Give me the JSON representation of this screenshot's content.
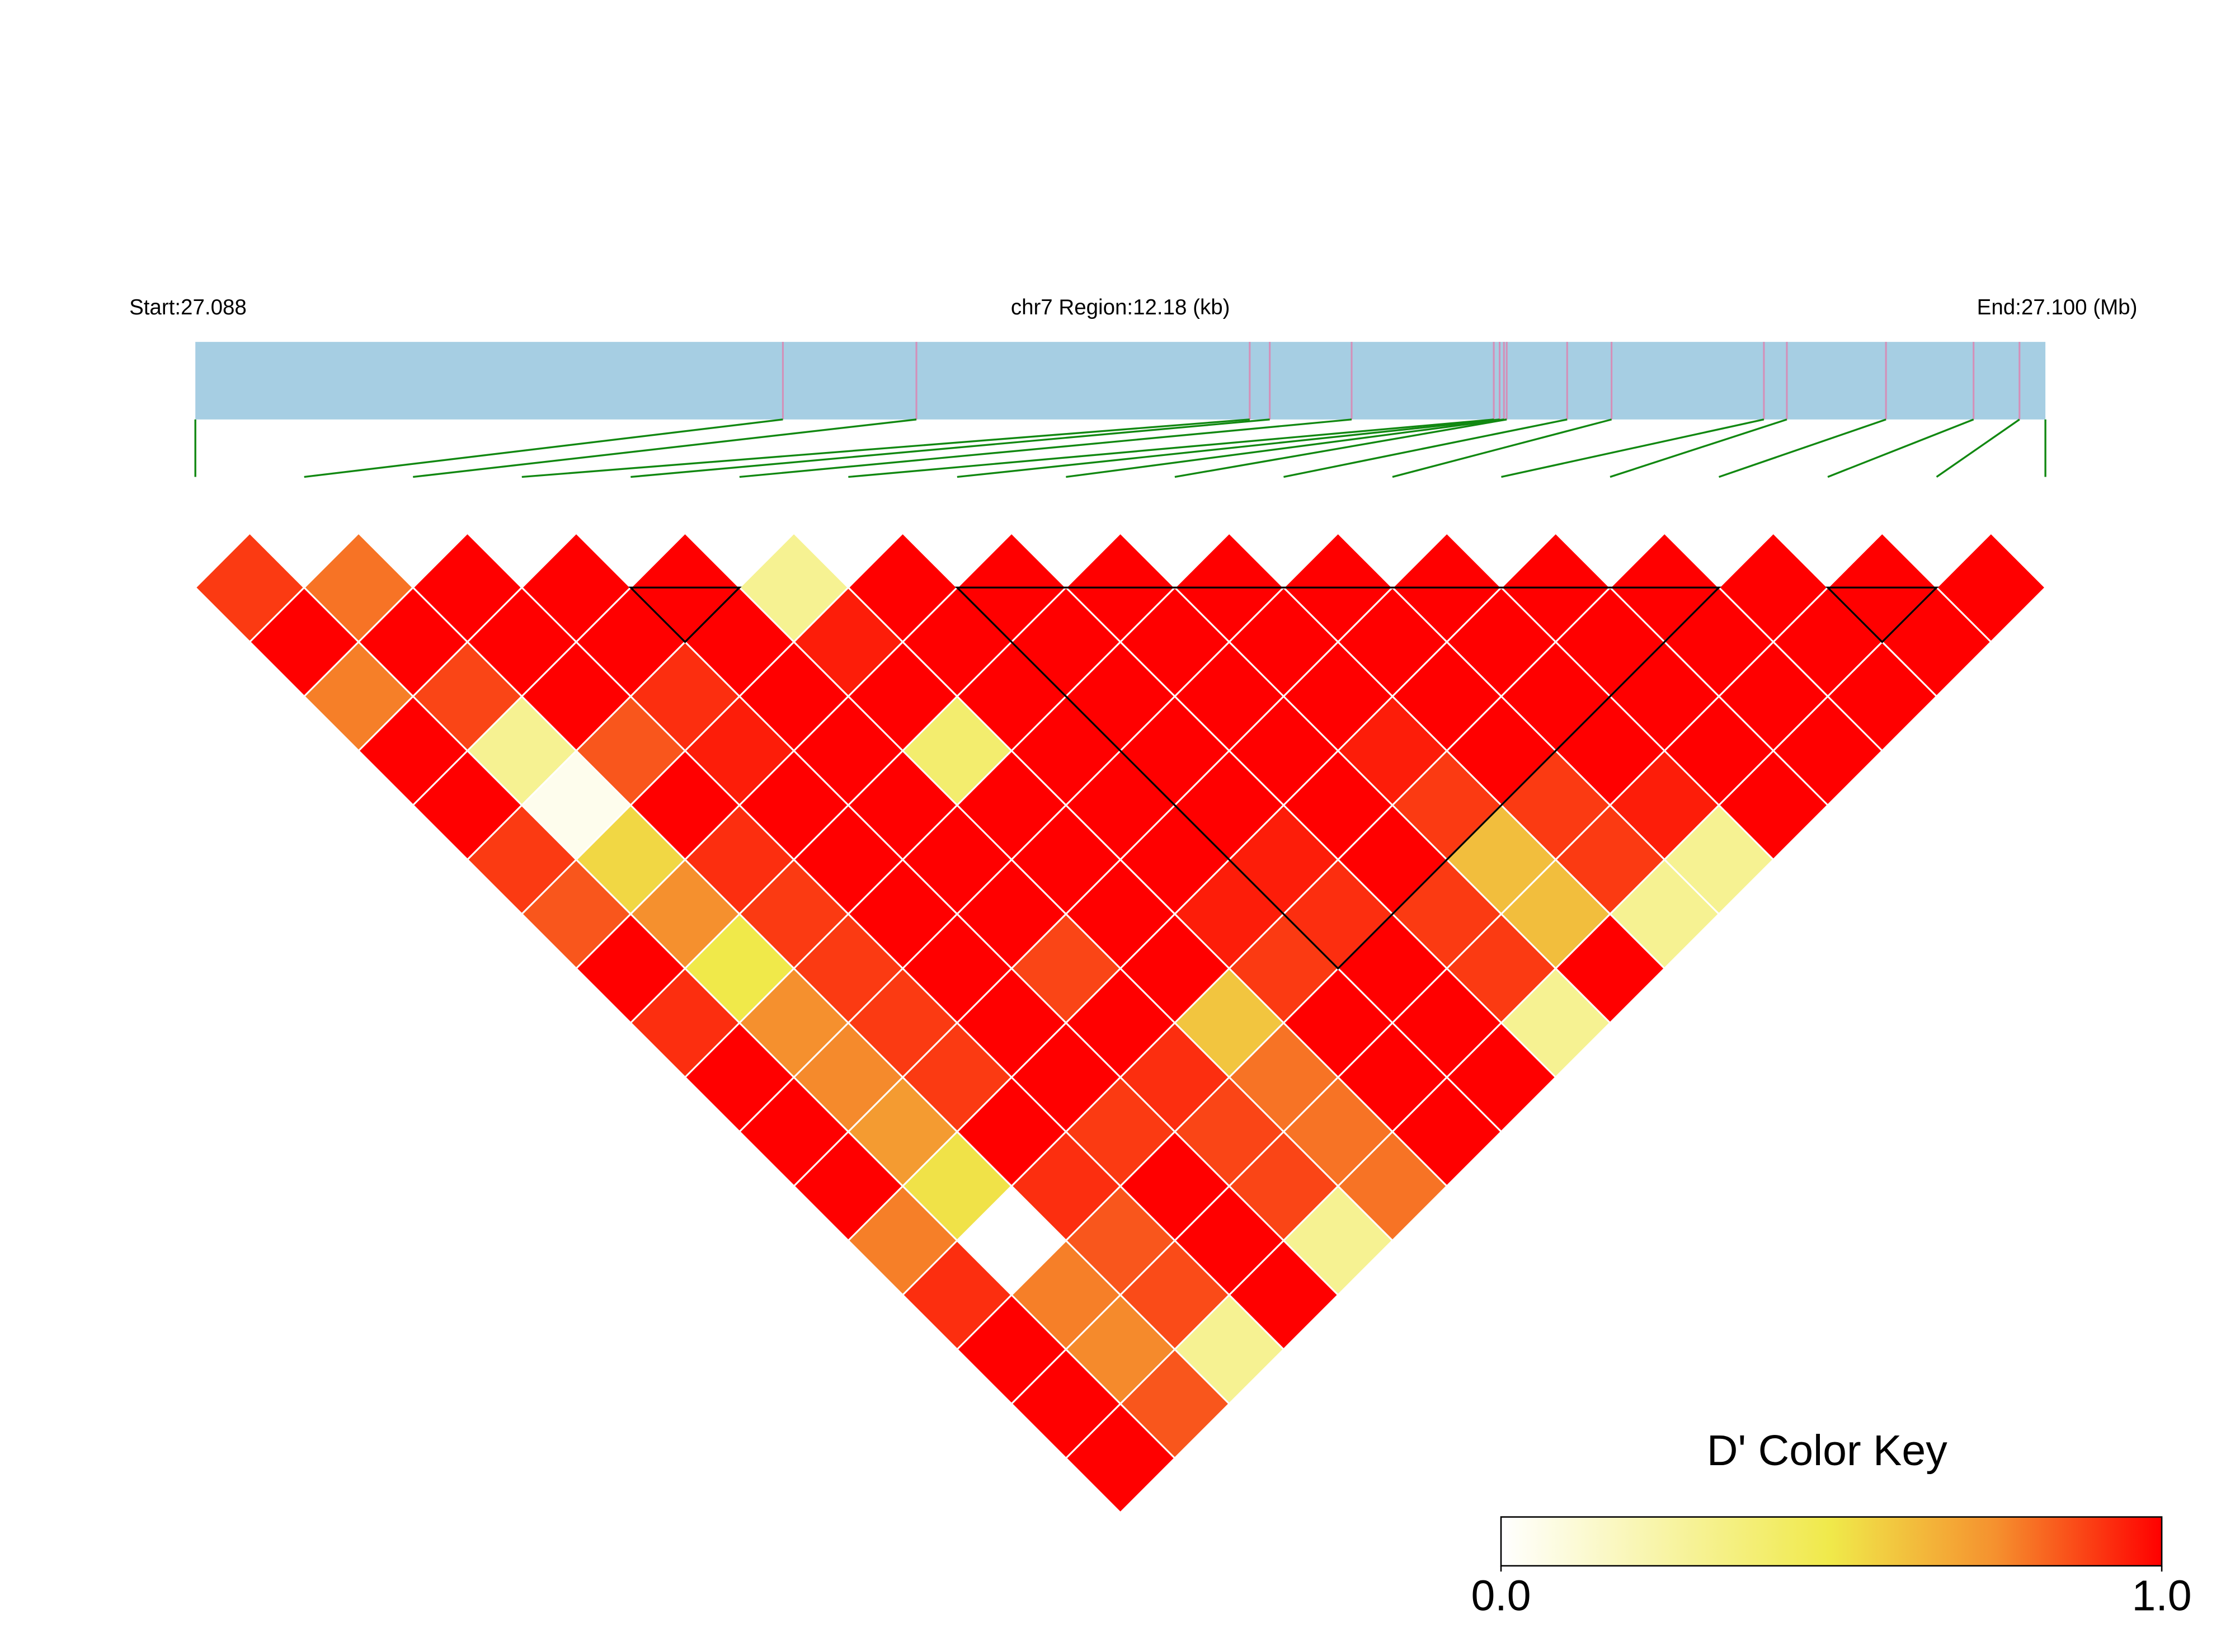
{
  "chart_data": {
    "type": "ld_heatmap",
    "start_label": "Start:27.088",
    "region_label": "chr7 Region:12.18 (kb)",
    "end_label": "End:27.100 (Mb)",
    "xlim": [
      27.088,
      27.1
    ],
    "snp_positions": [
      27.088,
      27.091811,
      27.092677,
      27.094839,
      27.094969,
      27.0955,
      27.096422,
      27.09646,
      27.096488,
      27.096506,
      27.096898,
      27.097186,
      27.098174,
      27.098323,
      27.098966,
      27.099534,
      27.099832,
      27.1
    ],
    "dprime": [
      [
        0.9,
        0.8,
        1,
        1,
        1,
        0.3,
        1,
        1,
        1,
        1,
        1,
        1,
        1,
        1,
        1,
        1,
        1
      ],
      [
        1,
        1,
        1,
        1,
        1,
        0.95,
        1,
        1,
        1,
        1,
        1,
        1,
        1,
        1,
        1,
        1
      ],
      [
        0.78,
        0.88,
        1,
        0.92,
        1,
        1,
        1,
        1,
        1,
        1,
        1,
        1,
        1,
        1,
        1
      ],
      [
        1,
        0.3,
        0.85,
        0.95,
        1,
        0.4,
        1,
        1,
        1,
        0.95,
        1,
        1,
        1,
        1
      ],
      [
        1,
        0.05,
        1,
        1,
        1,
        1,
        1,
        1,
        1,
        0.9,
        0.9,
        0.95,
        1
      ],
      [
        0.9,
        0.55,
        0.92,
        1,
        1,
        1,
        1,
        0.95,
        1,
        0.62,
        0.9,
        0.3
      ],
      [
        0.85,
        0.75,
        0.9,
        1,
        1,
        1,
        0.95,
        0.92,
        0.9,
        0.62,
        0.3
      ],
      [
        1,
        0.5,
        0.9,
        1,
        0.88,
        1,
        0.9,
        1,
        0.9,
        1
      ],
      [
        0.92,
        0.75,
        0.9,
        1,
        1,
        0.6,
        1,
        1,
        0.3
      ],
      [
        1,
        0.76,
        0.9,
        1,
        0.92,
        0.8,
        1,
        1
      ],
      [
        1,
        0.72,
        1,
        0.9,
        0.88,
        0.8,
        1
      ],
      [
        1,
        0.52,
        0.92,
        1,
        0.88,
        0.8
      ],
      [
        0.78,
        0,
        0.85,
        1,
        0.3
      ],
      [
        0.92,
        0.78,
        0.87,
        1
      ],
      [
        1,
        0.76,
        0.3
      ],
      [
        1,
        0.85
      ],
      [
        1
      ]
    ],
    "blocks": [
      [
        5,
        6
      ],
      [
        8,
        15
      ],
      [
        16,
        17
      ]
    ],
    "colorscale": [
      [
        0,
        "#ffffff"
      ],
      [
        0.5,
        "#f0e94a"
      ],
      [
        0.75,
        "#f5902e"
      ],
      [
        1,
        "#ff0000"
      ]
    ],
    "key_title": "D' Color Key",
    "key_lim": [
      0,
      1
    ],
    "key_ticks": [
      {
        "value": 0,
        "label": "0.0"
      },
      {
        "value": 1,
        "label": "1.0"
      }
    ]
  }
}
